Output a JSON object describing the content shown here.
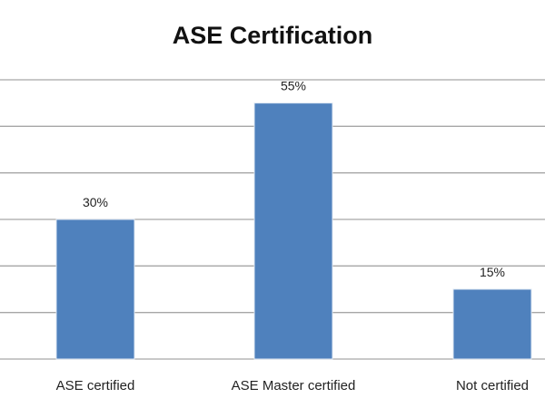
{
  "chart_data": {
    "type": "bar",
    "title": "ASE Certification",
    "categories": [
      "ASE certified",
      "ASE Master certified",
      "Not certified"
    ],
    "values": [
      30,
      55,
      15
    ],
    "data_labels": [
      "30%",
      "55%",
      "15%"
    ],
    "xlabel": "",
    "ylabel": "",
    "ylim": [
      0,
      60
    ],
    "y_gridlines": [
      0,
      10,
      20,
      30,
      40,
      50,
      60
    ],
    "grid": true,
    "legend": "none",
    "colors": {
      "bar": "#4F81BD",
      "grid": "#a6a6a6",
      "text": "#222222"
    }
  }
}
